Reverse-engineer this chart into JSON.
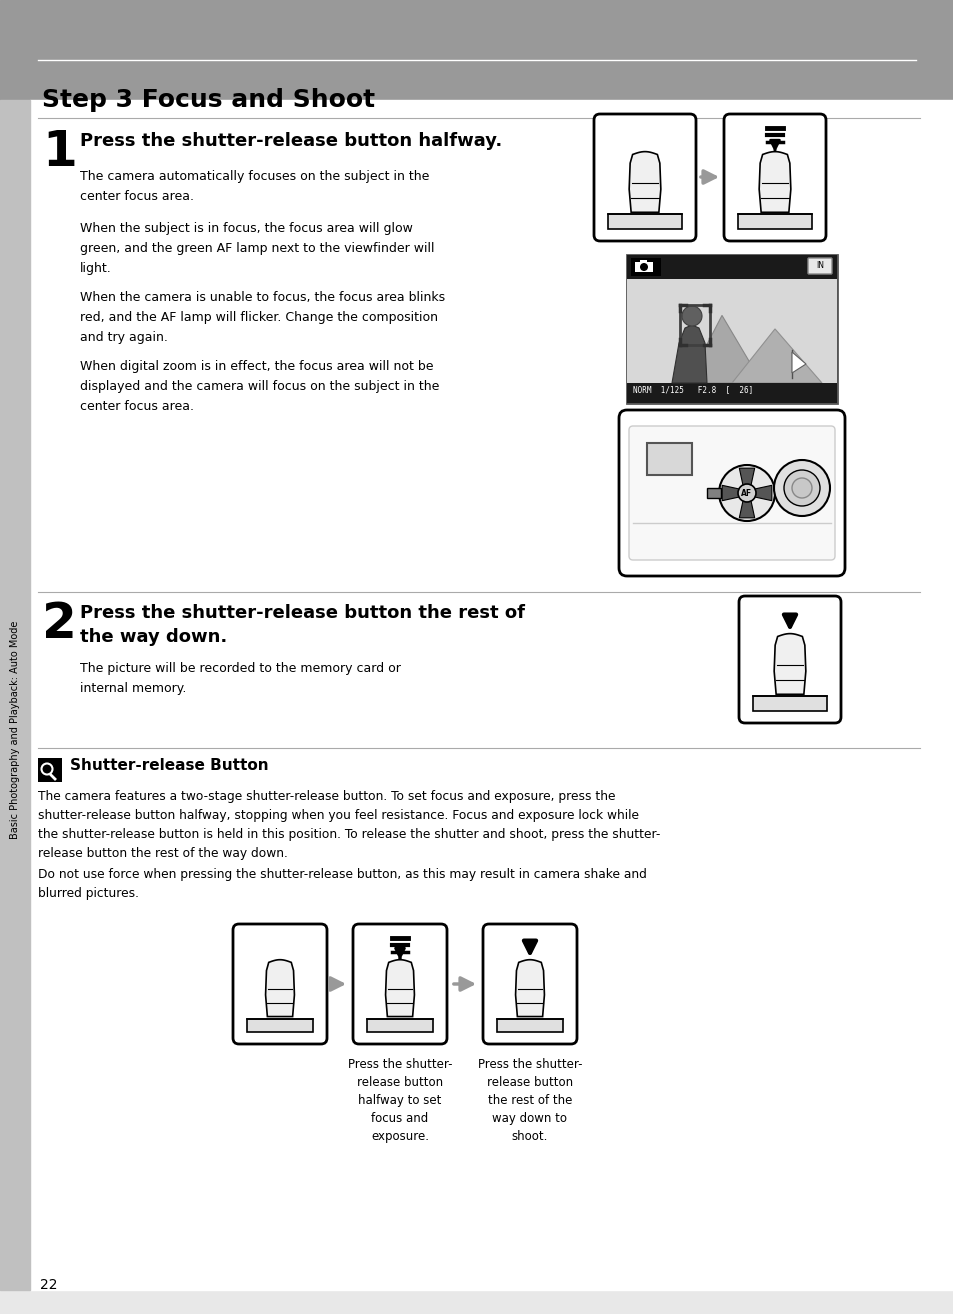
{
  "page_bg": "#e8e8e8",
  "content_bg": "#ffffff",
  "header_bg": "#999999",
  "header_text": "Step 3 Focus and Shoot",
  "header_text_color": "#000000",
  "sidebar_bg": "#c0c0c0",
  "sidebar_text": "Basic Photography and Playback: Auto Mode",
  "page_number": "22",
  "step1_number": "1",
  "step1_title": "Press the shutter-release button halfway.",
  "step1_para1": "The camera automatically focuses on the subject in the\ncenter focus area.",
  "step1_para2": "When the subject is in focus, the focus area will glow\ngreen, and the green AF lamp next to the viewfinder will\nlight.",
  "step1_para3": "When the camera is unable to focus, the focus area blinks\nred, and the AF lamp will flicker. Change the composition\nand try again.",
  "step1_para4": "When digital zoom is in effect, the focus area will not be\ndisplayed and the camera will focus on the subject in the\ncenter focus area.",
  "step2_number": "2",
  "step2_title": "Press the shutter-release button the rest of\nthe way down.",
  "step2_para": "The picture will be recorded to the memory card or\ninternal memory.",
  "note_title": "Shutter-release Button",
  "note_para1": "The camera features a two-stage shutter-release button. To set focus and exposure, press the\nshutter-release button halfway, stopping when you feel resistance. Focus and exposure lock while\nthe shutter-release button is held in this position. To release the shutter and shoot, press the shutter-\nrelease button the rest of the way down.",
  "note_para2": "Do not use force when pressing the shutter-release button, as this may result in camera shake and\nblurred pictures.",
  "caption1": "Press the shutter-\nrelease button\nhalfway to set\nfocus and\nexposure.",
  "caption2": "Press the shutter-\nrelease button\nthe rest of the\nway down to\nshoot.",
  "divider_color": "#aaaaaa",
  "arrow_color": "#999999"
}
